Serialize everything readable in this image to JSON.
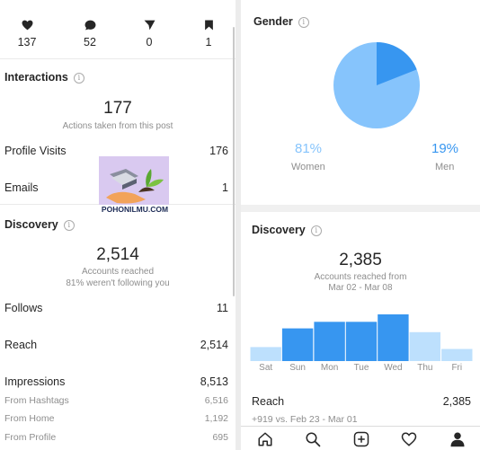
{
  "post_stats": {
    "likes": "137",
    "comments": "52",
    "shares": "0",
    "saves": "1"
  },
  "interactions": {
    "title": "Interactions",
    "actions_count": "177",
    "actions_label": "Actions taken from this post",
    "rows": [
      {
        "label": "Profile Visits",
        "value": "176"
      },
      {
        "label": "Emails",
        "value": "1"
      }
    ]
  },
  "watermark": {
    "text": "POHONILMU.COM"
  },
  "discovery_left": {
    "title": "Discovery",
    "reach_count": "2,514",
    "reach_label": "Accounts reached",
    "not_following": "81% weren't following you",
    "follows_label": "Follows",
    "follows_value": "11",
    "reach_row_label": "Reach",
    "reach_row_value": "2,514",
    "impressions_label": "Impressions",
    "impressions_value": "8,513",
    "sources": [
      {
        "label": "From Hashtags",
        "value": "6,516"
      },
      {
        "label": "From Home",
        "value": "1,192"
      },
      {
        "label": "From Profile",
        "value": "695"
      }
    ]
  },
  "gender": {
    "title": "Gender",
    "women_pct": "81%",
    "women_label": "Women",
    "men_pct": "19%",
    "men_label": "Men",
    "colors": {
      "women": "#86c4fc",
      "men": "#3796f0"
    }
  },
  "discovery_right": {
    "title": "Discovery",
    "reach_count": "2,385",
    "reach_label": "Accounts reached from",
    "date_range": "Mar 02 - Mar 08",
    "reach_row_label": "Reach",
    "reach_row_value": "2,385",
    "comparison": "+919 vs. Feb 23 - Mar 01"
  },
  "chart_data": {
    "type": "bar",
    "categories": [
      "Sat",
      "Sun",
      "Mon",
      "Tue",
      "Wed",
      "Thu",
      "Fri"
    ],
    "values": [
      15,
      35,
      42,
      42,
      50,
      31,
      13
    ],
    "colors": [
      "#bde0fd",
      "#3796f0",
      "#3796f0",
      "#3796f0",
      "#3796f0",
      "#bde0fd",
      "#bde0fd"
    ],
    "ylim": [
      0,
      50
    ]
  },
  "navbar": {
    "icons": [
      "home-icon",
      "search-icon",
      "add-post-icon",
      "activity-heart-icon",
      "profile-icon"
    ]
  }
}
